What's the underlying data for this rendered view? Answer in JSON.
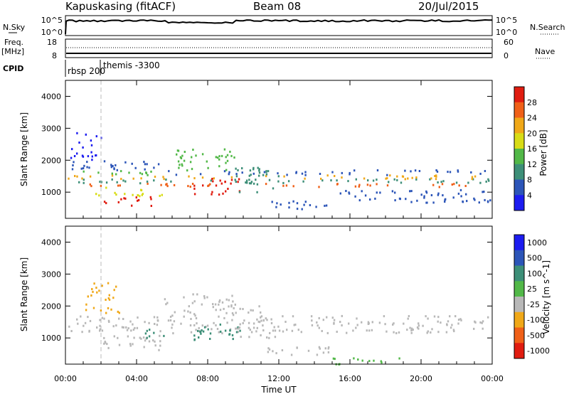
{
  "header": {
    "station": "Kapuskasing (fitACF)",
    "beam": "Beam 08",
    "date": "20/Jul/2015"
  },
  "top_panels": {
    "nsky_label": "N.Sky",
    "nsky_ticks": [
      "10^5",
      "10^0"
    ],
    "nsearch_label": "N.Search",
    "nsearch_ticks": [
      "10^5",
      "10^0"
    ],
    "freq_label_1": "Freq.",
    "freq_label_2": "[MHz]",
    "freq_ticks": [
      "18",
      "8"
    ],
    "nave_label": "Nave",
    "nave_ticks": [
      "60",
      "0"
    ],
    "cpid_label": "CPID",
    "cpid_entries": [
      "rbsp 200",
      "themis -3300"
    ]
  },
  "chart_data": [
    {
      "type": "heatmap",
      "name": "power",
      "ylabel": "Slant Range [km]",
      "ylim": [
        180,
        4500
      ],
      "yticks": [
        1000,
        2000,
        3000,
        4000
      ],
      "xlim": [
        0,
        24
      ],
      "colorbar_label": "Power [dB]",
      "colorbar_ticks": [
        "4",
        "8",
        "12",
        "16",
        "20",
        "24",
        "28"
      ],
      "colors": [
        "#1c1cf0",
        "#2c55b8",
        "#3d8f78",
        "#52b848",
        "#d8dc16",
        "#f0a818",
        "#f06018",
        "#e01c10"
      ],
      "bands": [
        {
          "t0": 0.1,
          "t1": 23.9,
          "r0": 1180,
          "r1": 1300,
          "level": 6
        },
        {
          "t0": 0.1,
          "t1": 23.9,
          "r0": 1300,
          "r1": 1440,
          "level": 2
        },
        {
          "t0": 0.1,
          "t1": 23.9,
          "r0": 1440,
          "r1": 1560,
          "level": 5
        },
        {
          "t0": 0.1,
          "t1": 5.5,
          "r0": 1560,
          "r1": 1700,
          "level": 3
        },
        {
          "t0": 5.5,
          "t1": 23.9,
          "r0": 1560,
          "r1": 1720,
          "level": 1
        },
        {
          "t0": 0.3,
          "t1": 5.8,
          "r0": 1720,
          "r1": 2000,
          "level": 1
        },
        {
          "t0": 2.0,
          "t1": 5.0,
          "r0": 600,
          "r1": 900,
          "level": 7
        },
        {
          "t0": 1.5,
          "t1": 5.5,
          "r0": 900,
          "r1": 1180,
          "level": 4
        },
        {
          "t0": 7.2,
          "t1": 9.8,
          "r0": 950,
          "r1": 1500,
          "level": 7
        },
        {
          "t0": 6.2,
          "t1": 9.5,
          "r0": 1700,
          "r1": 2400,
          "level": 3
        },
        {
          "t0": 9.5,
          "t1": 12.0,
          "r0": 1000,
          "r1": 1800,
          "level": 2
        },
        {
          "t0": 11.0,
          "t1": 15.0,
          "r0": 500,
          "r1": 750,
          "level": 1
        },
        {
          "t0": 15.0,
          "t1": 23.9,
          "r0": 700,
          "r1": 1100,
          "level": 1
        },
        {
          "t0": 0.1,
          "t1": 2.0,
          "r0": 2000,
          "r1": 2900,
          "level": 0
        }
      ]
    },
    {
      "type": "heatmap",
      "name": "velocity",
      "ylabel": "Slant Range [km]",
      "ylim": [
        180,
        4500
      ],
      "yticks": [
        1000,
        2000,
        3000,
        4000
      ],
      "xlim": [
        0,
        24
      ],
      "xlabel": "Time UT",
      "xticks": [
        "00:00",
        "04:00",
        "08:00",
        "12:00",
        "16:00",
        "20:00",
        "00:00"
      ],
      "colorbar_label": "Velocity [m s^-1]",
      "colorbar_ticks": [
        "1000",
        "500",
        "100",
        "25",
        "-25",
        "-100",
        "-500",
        "-1000"
      ],
      "colors": [
        "#1c1cf0",
        "#2c55b8",
        "#3d8f78",
        "#52b848",
        "#b8b8b8",
        "#f0a818",
        "#f06018",
        "#e01c10"
      ],
      "bands": [
        {
          "t0": 0.1,
          "t1": 23.9,
          "r0": 1180,
          "r1": 1560,
          "level": 4
        },
        {
          "t0": 0.1,
          "t1": 23.9,
          "r0": 1560,
          "r1": 1720,
          "level": 4
        },
        {
          "t0": 5.5,
          "t1": 11.0,
          "r0": 1700,
          "r1": 2400,
          "level": 4
        },
        {
          "t0": 2.0,
          "t1": 5.5,
          "r0": 650,
          "r1": 1100,
          "level": 4
        },
        {
          "t0": 7.2,
          "t1": 9.8,
          "r0": 950,
          "r1": 1500,
          "level": 2
        },
        {
          "t0": 4.0,
          "t1": 5.5,
          "r0": 1000,
          "r1": 1300,
          "level": 2
        },
        {
          "t0": 9.5,
          "t1": 12.0,
          "r0": 1000,
          "r1": 1800,
          "level": 4
        },
        {
          "t0": 11.0,
          "t1": 15.0,
          "r0": 500,
          "r1": 750,
          "level": 4
        },
        {
          "t0": 15.0,
          "t1": 19.0,
          "r0": 200,
          "r1": 400,
          "level": 3
        },
        {
          "t0": 1.0,
          "t1": 3.0,
          "r0": 1800,
          "r1": 2800,
          "level": 5
        }
      ]
    }
  ]
}
